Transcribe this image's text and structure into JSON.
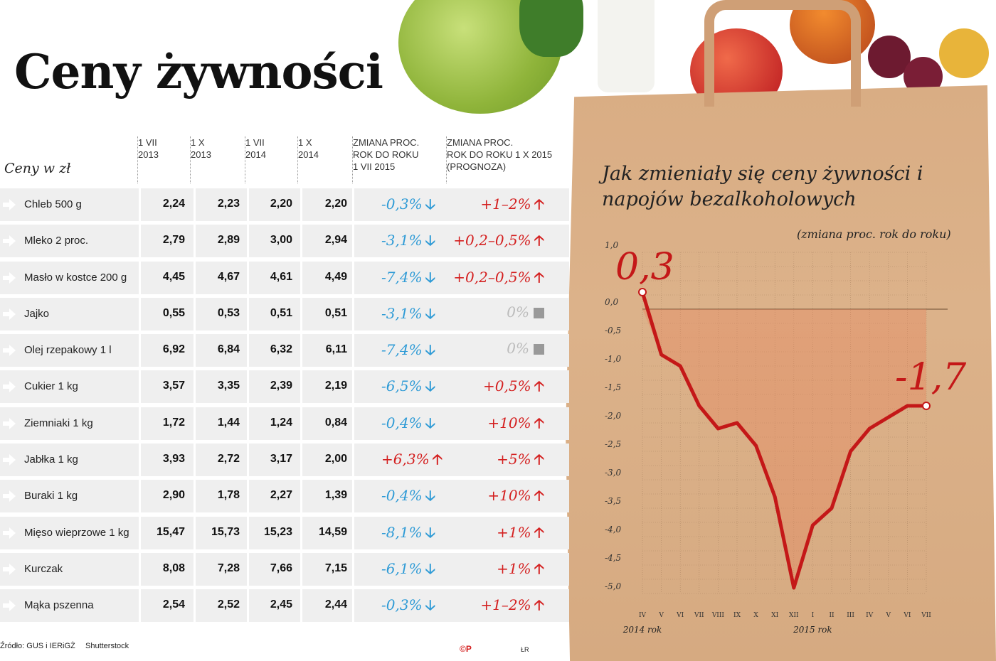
{
  "title": "Ceny żywności",
  "table": {
    "unit_label": "Ceny w zł",
    "columns": [
      {
        "line1": "1 VII",
        "line2": "2013"
      },
      {
        "line1": "1 X",
        "line2": "2013"
      },
      {
        "line1": "1 VII",
        "line2": "2014"
      },
      {
        "line1": "1 X",
        "line2": "2014"
      },
      {
        "line1": "ZMIANA PROC.",
        "line2": "ROK DO ROKU",
        "line3": "1 VII 2015"
      },
      {
        "line1": "ZMIANA PROC.",
        "line2": "ROK DO ROKU 1 X 2015",
        "line3": "(PROGNOZA)"
      }
    ],
    "rows": [
      {
        "name": "Chleb 500 g",
        "v1": "2,24",
        "v2": "2,23",
        "v3": "2,20",
        "v4": "2,20",
        "change": "-0,3%",
        "change_dir": "down",
        "forecast": "+1–2%",
        "forecast_dir": "up"
      },
      {
        "name": "Mleko 2 proc.",
        "v1": "2,79",
        "v2": "2,89",
        "v3": "3,00",
        "v4": "2,94",
        "change": "-3,1%",
        "change_dir": "down",
        "forecast": "+0,2–0,5%",
        "forecast_dir": "up"
      },
      {
        "name": "Masło w kostce 200 g",
        "v1": "4,45",
        "v2": "4,67",
        "v3": "4,61",
        "v4": "4,49",
        "change": "-7,4%",
        "change_dir": "down",
        "forecast": "+0,2–0,5%",
        "forecast_dir": "up"
      },
      {
        "name": "Jajko",
        "v1": "0,55",
        "v2": "0,53",
        "v3": "0,51",
        "v4": "0,51",
        "change": "-3,1%",
        "change_dir": "down",
        "forecast": "0%",
        "forecast_dir": "flat"
      },
      {
        "name": "Olej rzepakowy 1 l",
        "v1": "6,92",
        "v2": "6,84",
        "v3": "6,32",
        "v4": "6,11",
        "change": "-7,4%",
        "change_dir": "down",
        "forecast": "0%",
        "forecast_dir": "flat"
      },
      {
        "name": "Cukier 1 kg",
        "v1": "3,57",
        "v2": "3,35",
        "v3": "2,39",
        "v4": "2,19",
        "change": "-6,5%",
        "change_dir": "down",
        "forecast": "+0,5%",
        "forecast_dir": "up"
      },
      {
        "name": "Ziemniaki 1 kg",
        "v1": "1,72",
        "v2": "1,44",
        "v3": "1,24",
        "v4": "0,84",
        "change": "-0,4%",
        "change_dir": "down",
        "forecast": "+10%",
        "forecast_dir": "up"
      },
      {
        "name": "Jabłka 1 kg",
        "v1": "3,93",
        "v2": "2,72",
        "v3": "3,17",
        "v4": "2,00",
        "change": "+6,3%",
        "change_dir": "up",
        "forecast": "+5%",
        "forecast_dir": "up"
      },
      {
        "name": "Buraki 1 kg",
        "v1": "2,90",
        "v2": "1,78",
        "v3": "2,27",
        "v4": "1,39",
        "change": "-0,4%",
        "change_dir": "down",
        "forecast": "+10%",
        "forecast_dir": "up"
      },
      {
        "name": "Mięso wieprzowe 1 kg",
        "v1": "15,47",
        "v2": "15,73",
        "v3": "15,23",
        "v4": "14,59",
        "change": "-8,1%",
        "change_dir": "down",
        "forecast": "+1%",
        "forecast_dir": "up"
      },
      {
        "name": "Kurczak",
        "v1": "8,08",
        "v2": "7,28",
        "v3": "7,66",
        "v4": "7,15",
        "change": "-6,1%",
        "change_dir": "down",
        "forecast": "+1%",
        "forecast_dir": "up"
      },
      {
        "name": "Mąka pszenna",
        "v1": "2,54",
        "v2": "2,52",
        "v3": "2,45",
        "v4": "2,44",
        "change": "-0,3%",
        "change_dir": "down",
        "forecast": "+1–2%",
        "forecast_dir": "up"
      }
    ]
  },
  "footer": {
    "source": "Źródło: GUS i IERiGŻ",
    "photo": "Shutterstock",
    "logo": "©P",
    "author": "ŁR"
  },
  "colors": {
    "up": "#d42020",
    "down": "#2f9bd6",
    "flat": "#bbbbbb",
    "line": "#c41818",
    "row_bg": "#efefef"
  },
  "chart_data": {
    "type": "line",
    "title": "Jak zmieniały się ceny żywności i napojów bezalkoholowych",
    "subtitle": "(zmiana proc. rok do roku)",
    "xlabel": "",
    "ylabel": "",
    "x": [
      "IV",
      "V",
      "VI",
      "VII",
      "VIII",
      "IX",
      "X",
      "XI",
      "XII",
      "I",
      "II",
      "III",
      "IV",
      "V",
      "VI",
      "VII"
    ],
    "x_groups": [
      {
        "label": "2014 rok",
        "start": "IV"
      },
      {
        "label": "2015 rok",
        "start": "I"
      }
    ],
    "values": [
      0.3,
      -0.8,
      -1.0,
      -1.7,
      -2.1,
      -2.0,
      -2.4,
      -3.3,
      -4.9,
      -3.8,
      -3.5,
      -2.5,
      -2.1,
      -1.9,
      -1.7,
      -1.7
    ],
    "annotations": [
      {
        "x": "IV",
        "label": "0,3"
      },
      {
        "x": "VII",
        "label": "-1,7"
      }
    ],
    "yticks": [
      "1,0",
      "0,0",
      "-0,5",
      "-1,0",
      "-1,5",
      "-2,0",
      "-2,5",
      "-3,0",
      "-3,5",
      "-4,0",
      "-4,5",
      "-5,0"
    ],
    "ylim": [
      -5.0,
      1.0
    ],
    "grid": true
  }
}
